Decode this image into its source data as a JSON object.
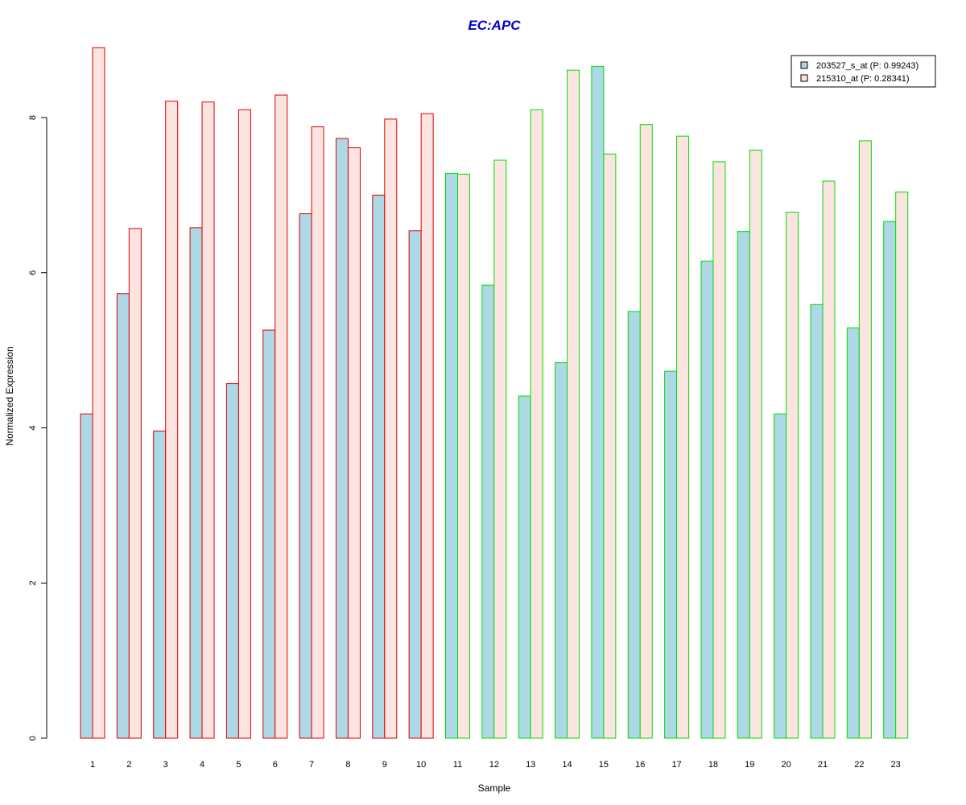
{
  "chart_data": {
    "type": "bar",
    "title": "EC:APC",
    "xlabel": "Sample",
    "ylabel": "Normalized Expression",
    "ylim": [
      0,
      9
    ],
    "yticks": [
      0,
      2,
      4,
      6,
      8
    ],
    "grid": false,
    "legend_position": "top-right",
    "categories": [
      "1",
      "2",
      "3",
      "4",
      "5",
      "6",
      "7",
      "8",
      "9",
      "10",
      "11",
      "12",
      "13",
      "14",
      "15",
      "16",
      "17",
      "18",
      "19",
      "20",
      "21",
      "22",
      "23"
    ],
    "group_border_colors": [
      "#dd0000",
      "#dd0000",
      "#dd0000",
      "#dd0000",
      "#dd0000",
      "#dd0000",
      "#dd0000",
      "#dd0000",
      "#dd0000",
      "#dd0000",
      "#00dd00",
      "#00dd00",
      "#00dd00",
      "#00dd00",
      "#00dd00",
      "#00dd00",
      "#00dd00",
      "#00dd00",
      "#00dd00",
      "#00dd00",
      "#00dd00",
      "#00dd00",
      "#00dd00"
    ],
    "series": [
      {
        "name": "203527_s_at (P: 0.99243)",
        "color": "#add8e6",
        "values": [
          4.18,
          5.73,
          3.96,
          6.58,
          4.57,
          5.26,
          6.76,
          7.73,
          7.0,
          6.54,
          7.28,
          5.84,
          4.41,
          4.84,
          8.66,
          5.5,
          4.73,
          6.15,
          6.53,
          4.18,
          5.59,
          5.29,
          6.66
        ]
      },
      {
        "name": "215310_at (P: 0.28341)",
        "color": "#fce4e0",
        "values": [
          8.9,
          6.57,
          8.21,
          8.2,
          8.1,
          8.29,
          7.88,
          7.61,
          7.98,
          8.05,
          7.27,
          7.45,
          8.1,
          8.61,
          7.53,
          7.91,
          7.76,
          7.43,
          7.58,
          6.78,
          7.18,
          7.7,
          7.04
        ]
      }
    ]
  }
}
